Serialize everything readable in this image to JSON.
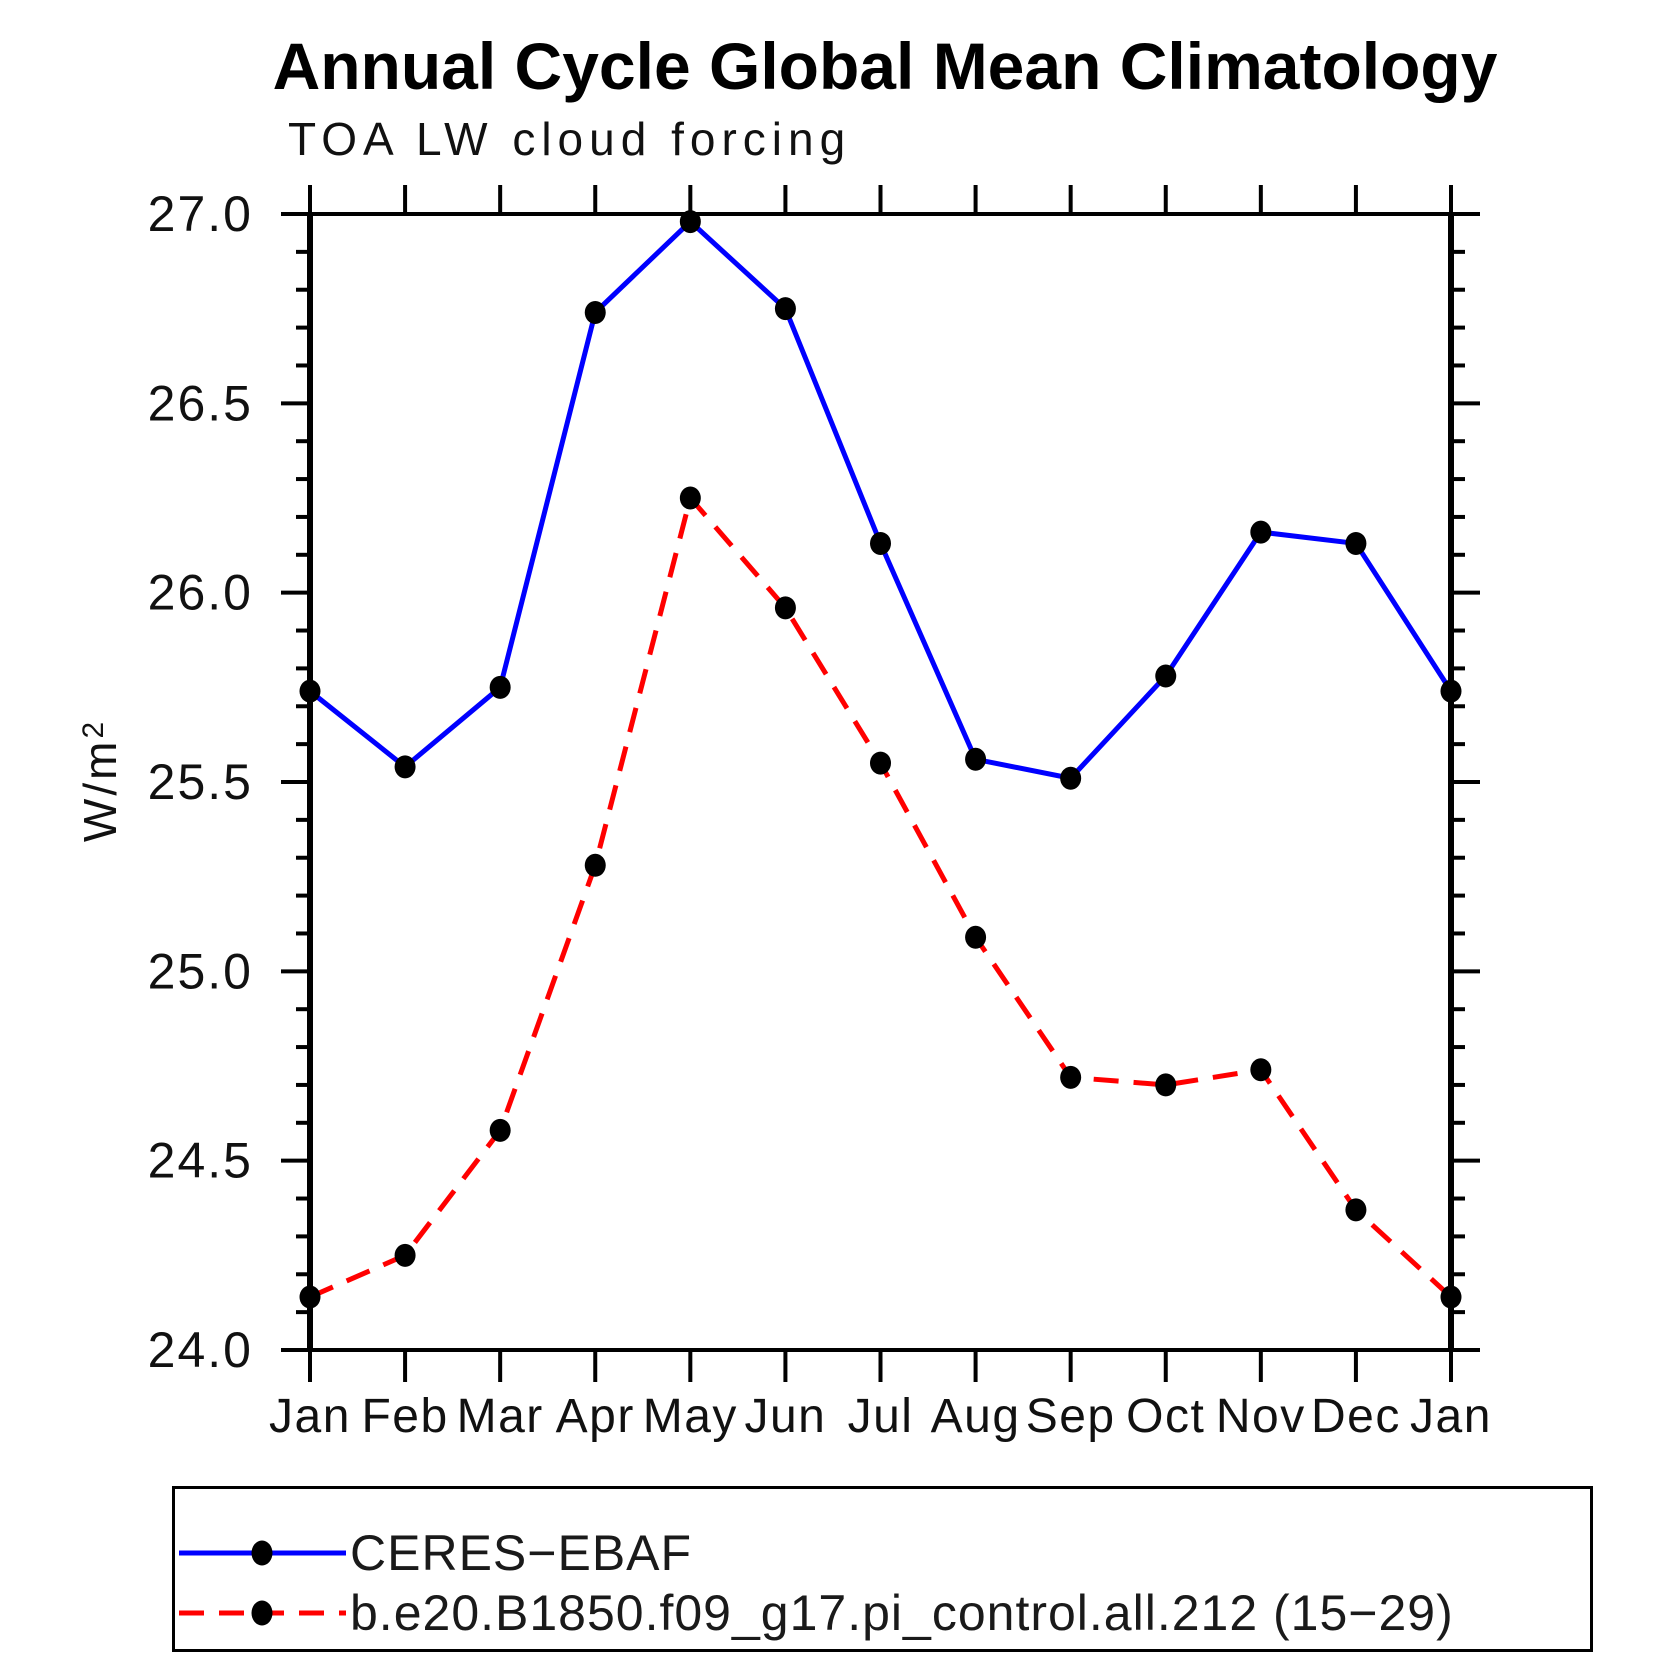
{
  "chart_data": {
    "type": "line",
    "title": "Annual Cycle Global Mean Climatology",
    "subtitle": "TOA LW cloud forcing",
    "ylabel_main": "W/m",
    "ylabel_exp": "2",
    "categories": [
      "Jan",
      "Feb",
      "Mar",
      "Apr",
      "May",
      "Jun",
      "Jul",
      "Aug",
      "Sep",
      "Oct",
      "Nov",
      "Dec",
      "Jan"
    ],
    "ylim": [
      24.0,
      27.0
    ],
    "ytick_labels": [
      "24.0",
      "24.5",
      "25.0",
      "25.5",
      "26.0",
      "26.5",
      "27.0"
    ],
    "ytick_values": [
      24.0,
      24.5,
      25.0,
      25.5,
      26.0,
      26.5,
      27.0
    ],
    "ytick_minor_step": 0.1,
    "grid": "off",
    "legend_position": "bottom-left-box",
    "marker": "filled-black-dot",
    "marker_color": "#000000",
    "axis_color": "#000000",
    "series": [
      {
        "name": "CERES−EBAF",
        "color": "#0000ff",
        "style": "solid",
        "values": [
          25.74,
          25.54,
          25.75,
          26.74,
          26.98,
          26.75,
          26.13,
          25.56,
          25.51,
          25.78,
          26.16,
          26.13,
          25.74
        ]
      },
      {
        "name": "b.e20.B1850.f09_g17.pi_control.all.212 (15−29)",
        "color": "#ff0000",
        "style": "dashed",
        "values": [
          24.14,
          24.25,
          24.58,
          25.28,
          26.25,
          25.96,
          25.55,
          25.09,
          24.72,
          24.7,
          24.74,
          24.37,
          24.14
        ]
      }
    ]
  }
}
